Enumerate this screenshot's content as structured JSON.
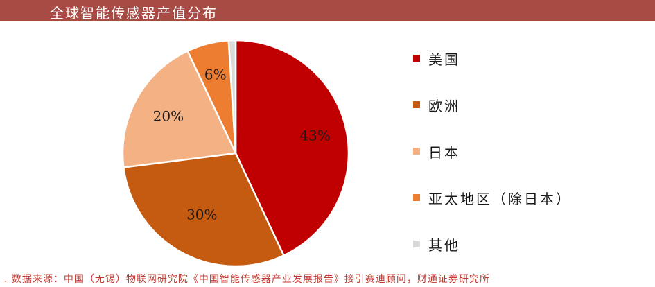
{
  "header": {
    "title": "全球智能传感器产值分布",
    "color": "#a94b45"
  },
  "chart_data": {
    "type": "pie",
    "categories": [
      "美国",
      "欧洲",
      "日本",
      "亚太地区（除日本）",
      "其他"
    ],
    "values": [
      43,
      30,
      20,
      6,
      1
    ],
    "value_labels": [
      "43%",
      "30%",
      "20%",
      "6%",
      "1%"
    ],
    "colors": [
      "#c00000",
      "#c55a11",
      "#f4b183",
      "#ed7d31",
      "#d9d9d9"
    ],
    "legend_position": "right"
  },
  "footer": {
    "source": ". 数据来源：中国（无锡）物联网研究院《中国智能传感器产业发展报告》接引赛迪顾问，财通证券研究所",
    "color": "#c03a32"
  }
}
